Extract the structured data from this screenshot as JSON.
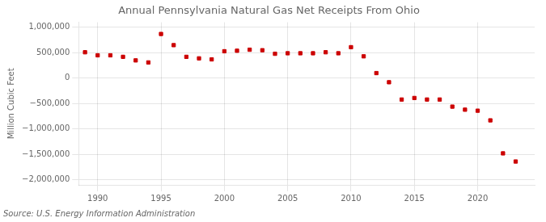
{
  "chart_data": {
    "type": "scatter",
    "title": "Annual Pennsylvania Natural Gas Net Receipts From Ohio",
    "ylabel": "Million Cubic Feet",
    "annotation": "Source: U.S. Energy Information Administration",
    "x": [
      1989,
      1990,
      1991,
      1992,
      1993,
      1994,
      1995,
      1996,
      1997,
      1998,
      1999,
      2000,
      2001,
      2002,
      2003,
      2004,
      2005,
      2006,
      2007,
      2008,
      2009,
      2010,
      2011,
      2012,
      2013,
      2014,
      2015,
      2016,
      2017,
      2018,
      2019,
      2020,
      2021,
      2022,
      2023
    ],
    "values": [
      510000,
      450000,
      450000,
      420000,
      350000,
      310000,
      870000,
      650000,
      420000,
      390000,
      370000,
      530000,
      540000,
      560000,
      550000,
      480000,
      490000,
      490000,
      490000,
      510000,
      490000,
      610000,
      430000,
      100000,
      -80000,
      -420000,
      -390000,
      -420000,
      -420000,
      -560000,
      -620000,
      -640000,
      -830000,
      -1480000,
      -1640000
    ],
    "color": "#cc0000",
    "marker": "square",
    "xlim": [
      1988.5,
      2024.5
    ],
    "ylim": [
      -2100000,
      1100000
    ],
    "xticks": [
      1990,
      1995,
      2000,
      2005,
      2010,
      2015,
      2020
    ],
    "yticks": [
      {
        "value": -2000000,
        "label": "−2,000,000"
      },
      {
        "value": -1500000,
        "label": "−1,500,000"
      },
      {
        "value": -1000000,
        "label": "−1,000,000"
      },
      {
        "value": -500000,
        "label": "−500,000"
      },
      0,
      {
        "value": 500000,
        "label": "500,000"
      },
      {
        "value": 1000000,
        "label": "1,000,000"
      }
    ],
    "grid": true
  }
}
